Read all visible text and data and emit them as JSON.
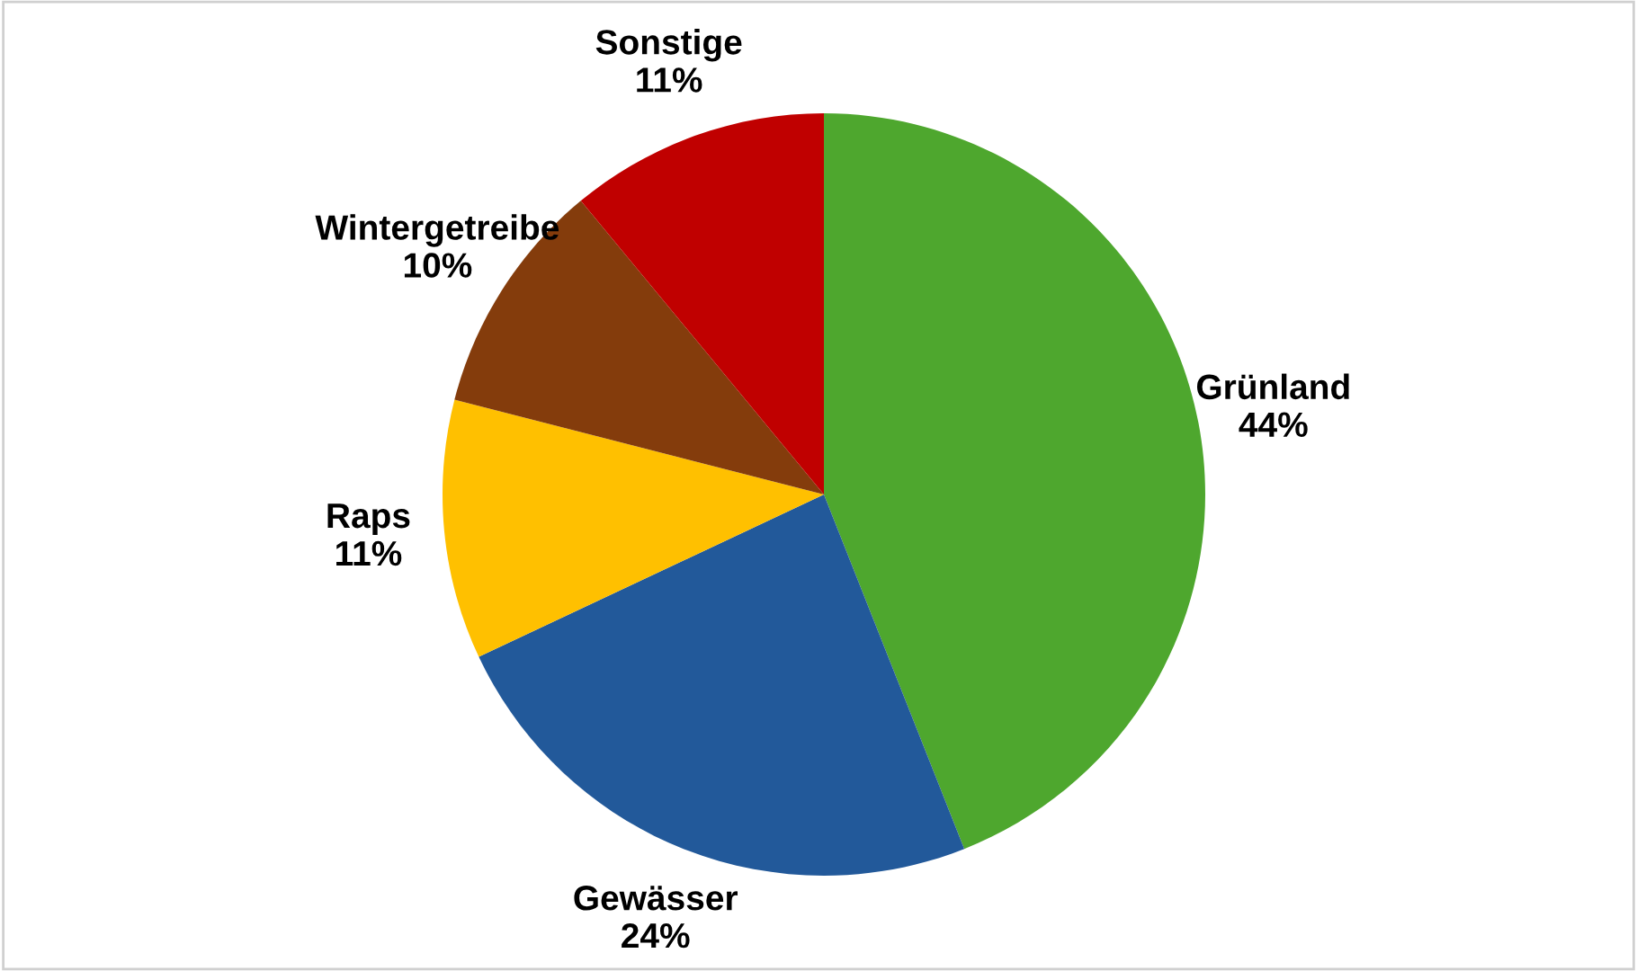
{
  "chart_data": {
    "type": "pie",
    "categories": [
      "Grünland",
      "Gewässer",
      "Raps",
      "Wintergetreibe",
      "Sonstige"
    ],
    "values": [
      44,
      24,
      11,
      10,
      11
    ],
    "value_labels": [
      "44%",
      "24%",
      "11%",
      "10%",
      "11%"
    ],
    "colors": [
      "#4ea72e",
      "#22599a",
      "#ffc000",
      "#843c0c",
      "#c00000"
    ],
    "legend": false
  }
}
